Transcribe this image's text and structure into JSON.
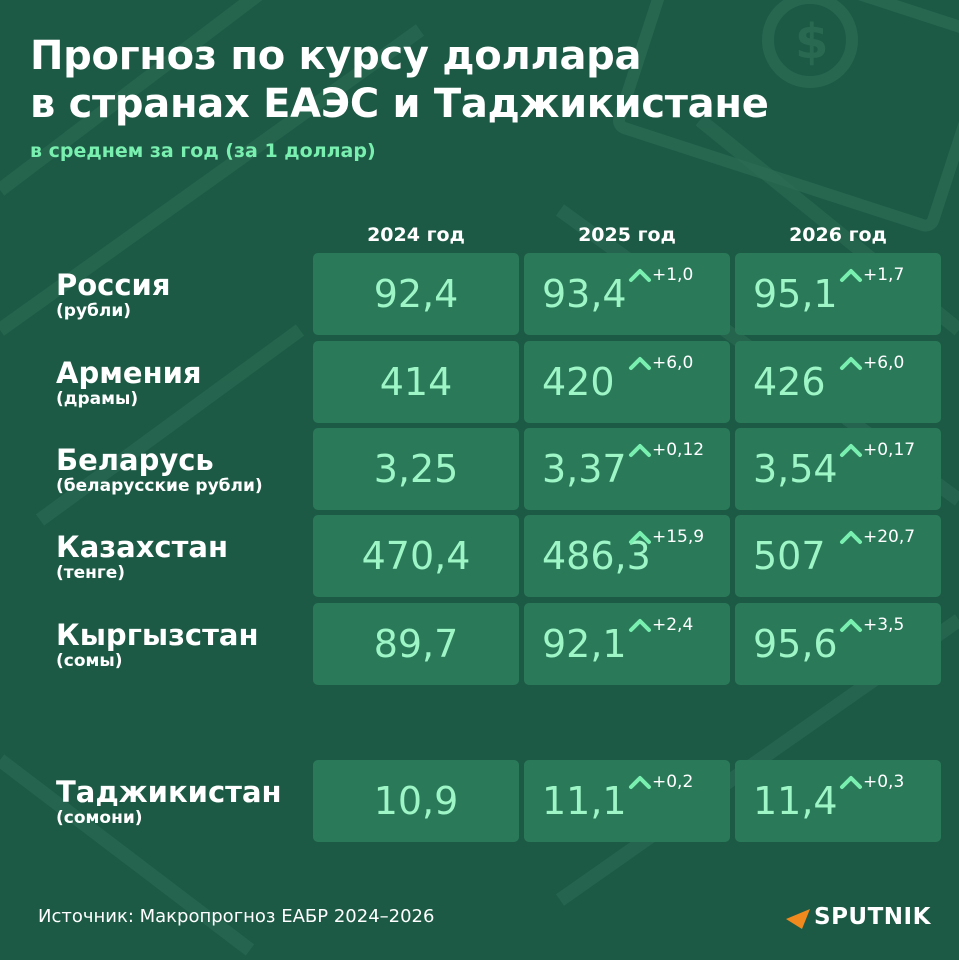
{
  "title_line1": "Прогноз по курсу доллара",
  "title_line2": "в странах ЕАЭС и Таджикистане",
  "subtitle": "в среднем за год (за 1 доллар)",
  "source": "Источник: Макропрогноз ЕАБР 2024–2026",
  "brand": "SPUTNIK",
  "colors": {
    "background": "#1c5a45",
    "cell": "#2a7a5a",
    "value": "#9ef5c6",
    "accent": "#7af0b0"
  },
  "chart_data": {
    "type": "table",
    "columns": [
      "2024 год",
      "2025 год",
      "2026 год"
    ],
    "rows": [
      {
        "country": "Россия",
        "unit": "(рубли)",
        "values": [
          "92,4",
          "93,4",
          "95,1"
        ],
        "changes": [
          "",
          "+1,0",
          "+1,7"
        ]
      },
      {
        "country": "Армения",
        "unit": "(драмы)",
        "values": [
          "414",
          "420",
          "426"
        ],
        "changes": [
          "",
          "+6,0",
          "+6,0"
        ]
      },
      {
        "country": "Беларусь",
        "unit": "(беларусские рубли)",
        "values": [
          "3,25",
          "3,37",
          "3,54"
        ],
        "changes": [
          "",
          "+0,12",
          "+0,17"
        ]
      },
      {
        "country": "Казахстан",
        "unit": "(тенге)",
        "values": [
          "470,4",
          "486,3",
          "507"
        ],
        "changes": [
          "",
          "+15,9",
          "+20,7"
        ]
      },
      {
        "country": "Кыргызстан",
        "unit": "(сомы)",
        "values": [
          "89,7",
          "92,1",
          "95,6"
        ],
        "changes": [
          "",
          "+2,4",
          "+3,5"
        ]
      },
      {
        "country": "Таджикистан",
        "unit": "(сомони)",
        "values": [
          "10,9",
          "11,1",
          "11,4"
        ],
        "changes": [
          "",
          "+0,2",
          "+0,3"
        ]
      }
    ]
  }
}
